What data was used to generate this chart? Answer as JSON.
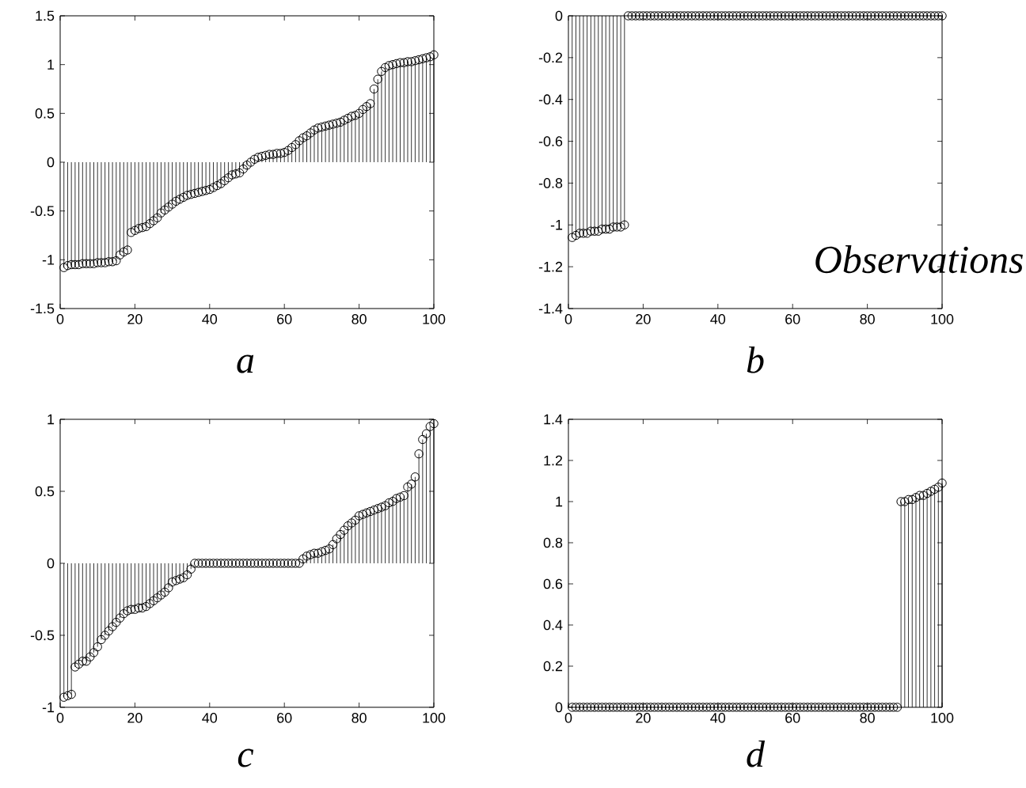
{
  "chart_data": [
    {
      "type": "lollipop",
      "xlabel": "a",
      "color": "#000000",
      "marker": "circle",
      "grid": false,
      "xlim": [
        0,
        100
      ],
      "ylim": [
        -1.5,
        1.5
      ],
      "xticks": [
        0,
        20,
        40,
        60,
        80,
        100
      ],
      "yticks": [
        -1.5,
        -1,
        -0.5,
        0,
        0.5,
        1,
        1.5
      ],
      "x": [
        1,
        2,
        3,
        4,
        5,
        6,
        7,
        8,
        9,
        10,
        11,
        12,
        13,
        14,
        15,
        16,
        17,
        18,
        19,
        20,
        21,
        22,
        23,
        24,
        25,
        26,
        27,
        28,
        29,
        30,
        31,
        32,
        33,
        34,
        35,
        36,
        37,
        38,
        39,
        40,
        41,
        42,
        43,
        44,
        45,
        46,
        47,
        48,
        49,
        50,
        51,
        52,
        53,
        54,
        55,
        56,
        57,
        58,
        59,
        60,
        61,
        62,
        63,
        64,
        65,
        66,
        67,
        68,
        69,
        70,
        71,
        72,
        73,
        74,
        75,
        76,
        77,
        78,
        79,
        80,
        81,
        82,
        83,
        84,
        85,
        86,
        87,
        88,
        89,
        90,
        91,
        92,
        93,
        94,
        95,
        96,
        97,
        98,
        99,
        100
      ],
      "values": [
        -1.08,
        -1.06,
        -1.05,
        -1.05,
        -1.05,
        -1.04,
        -1.04,
        -1.04,
        -1.04,
        -1.03,
        -1.03,
        -1.03,
        -1.02,
        -1.02,
        -1.01,
        -0.95,
        -0.92,
        -0.9,
        -0.72,
        -0.7,
        -0.68,
        -0.67,
        -0.66,
        -0.63,
        -0.6,
        -0.57,
        -0.52,
        -0.49,
        -0.46,
        -0.43,
        -0.4,
        -0.38,
        -0.36,
        -0.34,
        -0.33,
        -0.32,
        -0.31,
        -0.3,
        -0.29,
        -0.28,
        -0.26,
        -0.24,
        -0.22,
        -0.19,
        -0.16,
        -0.13,
        -0.12,
        -0.11,
        -0.07,
        -0.03,
        0.0,
        0.03,
        0.05,
        0.06,
        0.07,
        0.08,
        0.08,
        0.09,
        0.09,
        0.1,
        0.12,
        0.15,
        0.18,
        0.22,
        0.25,
        0.27,
        0.3,
        0.33,
        0.35,
        0.36,
        0.37,
        0.38,
        0.39,
        0.4,
        0.41,
        0.43,
        0.45,
        0.47,
        0.48,
        0.5,
        0.54,
        0.57,
        0.6,
        0.75,
        0.85,
        0.93,
        0.97,
        0.99,
        1.0,
        1.01,
        1.02,
        1.02,
        1.03,
        1.03,
        1.04,
        1.05,
        1.06,
        1.07,
        1.08,
        1.1
      ]
    },
    {
      "type": "lollipop",
      "xlabel": "b",
      "annotations": [
        "Observations"
      ],
      "color": "#000000",
      "marker": "circle",
      "grid": false,
      "xlim": [
        0,
        100
      ],
      "ylim": [
        -1.4,
        0
      ],
      "xticks": [
        0,
        20,
        40,
        60,
        80,
        100
      ],
      "yticks": [
        -1.4,
        -1.2,
        -1,
        -0.8,
        -0.6,
        -0.4,
        -0.2,
        0
      ],
      "x": [
        1,
        2,
        3,
        4,
        5,
        6,
        7,
        8,
        9,
        10,
        11,
        12,
        13,
        14,
        15,
        16,
        17,
        18,
        19,
        20,
        21,
        22,
        23,
        24,
        25,
        26,
        27,
        28,
        29,
        30,
        31,
        32,
        33,
        34,
        35,
        36,
        37,
        38,
        39,
        40,
        41,
        42,
        43,
        44,
        45,
        46,
        47,
        48,
        49,
        50,
        51,
        52,
        53,
        54,
        55,
        56,
        57,
        58,
        59,
        60,
        61,
        62,
        63,
        64,
        65,
        66,
        67,
        68,
        69,
        70,
        71,
        72,
        73,
        74,
        75,
        76,
        77,
        78,
        79,
        80,
        81,
        82,
        83,
        84,
        85,
        86,
        87,
        88,
        89,
        90,
        91,
        92,
        93,
        94,
        95,
        96,
        97,
        98,
        99,
        100
      ],
      "values": [
        -1.06,
        -1.05,
        -1.04,
        -1.04,
        -1.04,
        -1.03,
        -1.03,
        -1.03,
        -1.02,
        -1.02,
        -1.02,
        -1.01,
        -1.01,
        -1.01,
        -1.0,
        0,
        0,
        0,
        0,
        0,
        0,
        0,
        0,
        0,
        0,
        0,
        0,
        0,
        0,
        0,
        0,
        0,
        0,
        0,
        0,
        0,
        0,
        0,
        0,
        0,
        0,
        0,
        0,
        0,
        0,
        0,
        0,
        0,
        0,
        0,
        0,
        0,
        0,
        0,
        0,
        0,
        0,
        0,
        0,
        0,
        0,
        0,
        0,
        0,
        0,
        0,
        0,
        0,
        0,
        0,
        0,
        0,
        0,
        0,
        0,
        0,
        0,
        0,
        0,
        0,
        0,
        0,
        0,
        0,
        0,
        0,
        0,
        0,
        0,
        0,
        0,
        0,
        0,
        0,
        0,
        0,
        0,
        0,
        0,
        0
      ]
    },
    {
      "type": "lollipop",
      "xlabel": "c",
      "color": "#000000",
      "marker": "circle",
      "grid": false,
      "xlim": [
        0,
        100
      ],
      "ylim": [
        -1,
        1
      ],
      "xticks": [
        0,
        20,
        40,
        60,
        80,
        100
      ],
      "yticks": [
        -1,
        -0.5,
        0,
        0.5,
        1
      ],
      "x": [
        1,
        2,
        3,
        4,
        5,
        6,
        7,
        8,
        9,
        10,
        11,
        12,
        13,
        14,
        15,
        16,
        17,
        18,
        19,
        20,
        21,
        22,
        23,
        24,
        25,
        26,
        27,
        28,
        29,
        30,
        31,
        32,
        33,
        34,
        35,
        36,
        37,
        38,
        39,
        40,
        41,
        42,
        43,
        44,
        45,
        46,
        47,
        48,
        49,
        50,
        51,
        52,
        53,
        54,
        55,
        56,
        57,
        58,
        59,
        60,
        61,
        62,
        63,
        64,
        65,
        66,
        67,
        68,
        69,
        70,
        71,
        72,
        73,
        74,
        75,
        76,
        77,
        78,
        79,
        80,
        81,
        82,
        83,
        84,
        85,
        86,
        87,
        88,
        89,
        90,
        91,
        92,
        93,
        94,
        95,
        96,
        97,
        98,
        99,
        100
      ],
      "values": [
        -0.93,
        -0.92,
        -0.91,
        -0.72,
        -0.7,
        -0.68,
        -0.68,
        -0.65,
        -0.62,
        -0.58,
        -0.53,
        -0.5,
        -0.47,
        -0.44,
        -0.41,
        -0.38,
        -0.35,
        -0.33,
        -0.32,
        -0.32,
        -0.31,
        -0.31,
        -0.3,
        -0.28,
        -0.26,
        -0.24,
        -0.22,
        -0.2,
        -0.17,
        -0.13,
        -0.12,
        -0.11,
        -0.1,
        -0.08,
        -0.04,
        0,
        0,
        0,
        0,
        0,
        0,
        0,
        0,
        0,
        0,
        0,
        0,
        0,
        0,
        0,
        0,
        0,
        0,
        0,
        0,
        0,
        0,
        0,
        0,
        0,
        0,
        0,
        0,
        0,
        0.03,
        0.05,
        0.06,
        0.07,
        0.07,
        0.08,
        0.09,
        0.1,
        0.13,
        0.17,
        0.2,
        0.23,
        0.26,
        0.28,
        0.3,
        0.33,
        0.34,
        0.35,
        0.36,
        0.37,
        0.38,
        0.39,
        0.4,
        0.42,
        0.43,
        0.45,
        0.46,
        0.47,
        0.53,
        0.55,
        0.6,
        0.76,
        0.86,
        0.9,
        0.95,
        0.97
      ]
    },
    {
      "type": "lollipop",
      "xlabel": "d",
      "color": "#000000",
      "marker": "circle",
      "grid": false,
      "xlim": [
        0,
        100
      ],
      "ylim": [
        0,
        1.4
      ],
      "xticks": [
        0,
        20,
        40,
        60,
        80,
        100
      ],
      "yticks": [
        0,
        0.2,
        0.4,
        0.6,
        0.8,
        1,
        1.2,
        1.4
      ],
      "x": [
        1,
        2,
        3,
        4,
        5,
        6,
        7,
        8,
        9,
        10,
        11,
        12,
        13,
        14,
        15,
        16,
        17,
        18,
        19,
        20,
        21,
        22,
        23,
        24,
        25,
        26,
        27,
        28,
        29,
        30,
        31,
        32,
        33,
        34,
        35,
        36,
        37,
        38,
        39,
        40,
        41,
        42,
        43,
        44,
        45,
        46,
        47,
        48,
        49,
        50,
        51,
        52,
        53,
        54,
        55,
        56,
        57,
        58,
        59,
        60,
        61,
        62,
        63,
        64,
        65,
        66,
        67,
        68,
        69,
        70,
        71,
        72,
        73,
        74,
        75,
        76,
        77,
        78,
        79,
        80,
        81,
        82,
        83,
        84,
        85,
        86,
        87,
        88,
        89,
        90,
        91,
        92,
        93,
        94,
        95,
        96,
        97,
        98,
        99,
        100
      ],
      "values": [
        0,
        0,
        0,
        0,
        0,
        0,
        0,
        0,
        0,
        0,
        0,
        0,
        0,
        0,
        0,
        0,
        0,
        0,
        0,
        0,
        0,
        0,
        0,
        0,
        0,
        0,
        0,
        0,
        0,
        0,
        0,
        0,
        0,
        0,
        0,
        0,
        0,
        0,
        0,
        0,
        0,
        0,
        0,
        0,
        0,
        0,
        0,
        0,
        0,
        0,
        0,
        0,
        0,
        0,
        0,
        0,
        0,
        0,
        0,
        0,
        0,
        0,
        0,
        0,
        0,
        0,
        0,
        0,
        0,
        0,
        0,
        0,
        0,
        0,
        0,
        0,
        0,
        0,
        0,
        0,
        0,
        0,
        0,
        0,
        0,
        0,
        0,
        0,
        1.0,
        1.0,
        1.01,
        1.01,
        1.02,
        1.03,
        1.03,
        1.04,
        1.05,
        1.06,
        1.07,
        1.09
      ]
    }
  ]
}
